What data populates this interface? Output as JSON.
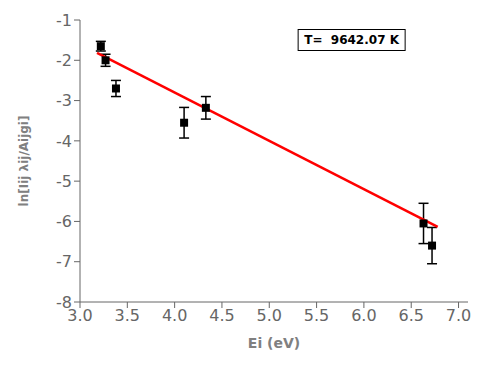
{
  "chart_data": {
    "type": "scatter",
    "xlabel": "Ei (eV)",
    "ylabel": "ln[Iij λij/Aijgi]",
    "annotation": "T=  9642.07 K",
    "xlim": [
      3.0,
      7.1
    ],
    "ylim": [
      -8,
      -1
    ],
    "xticks": [
      {
        "value": 3,
        "label": "3.0"
      },
      3.5,
      {
        "value": 4,
        "label": "4.0"
      },
      4.5,
      {
        "value": 5,
        "label": "5.0"
      },
      5.5,
      {
        "value": 6,
        "label": "6.0"
      },
      6.5,
      {
        "value": 7,
        "label": "7.0"
      }
    ],
    "yticks": [
      -8,
      -7,
      -6,
      -5,
      -4,
      -3,
      -2,
      -1
    ],
    "grid": false,
    "series": [
      {
        "type": "line",
        "color": "#ff0000",
        "x": [
          3.18,
          6.78
        ],
        "values": [
          -1.816,
          -6.136
        ]
      },
      {
        "type": "scatter",
        "color": "#000000",
        "marker": "square",
        "x": [
          3.22,
          3.27,
          3.38,
          4.1,
          4.33,
          6.63,
          6.72
        ],
        "values": [
          -1.65,
          -2.0,
          -2.7,
          -3.55,
          -3.18,
          -6.05,
          -6.6
        ],
        "y_err": [
          0.12,
          0.15,
          0.2,
          0.38,
          0.28,
          0.5,
          0.45
        ]
      }
    ]
  }
}
